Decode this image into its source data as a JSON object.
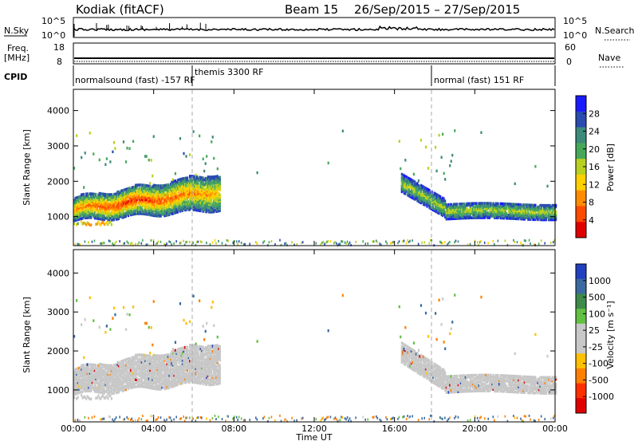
{
  "header": {
    "station": "Kodiak (fitACF)",
    "beam": "Beam 15",
    "dates": "26/Sep/2015 – 27/Sep/2015"
  },
  "nsky": {
    "left_label": "N.Sky",
    "right_label": "N.Search",
    "left_ticks": [
      "10^5",
      "10^0"
    ],
    "right_ticks": [
      "10^5",
      "10^0"
    ]
  },
  "freq": {
    "left_label_1": "Freq.",
    "left_label_2": "[MHz]",
    "right_label": "Nave",
    "left_ticks": [
      "18",
      "8"
    ],
    "right_ticks": [
      "60",
      "0"
    ]
  },
  "cpid": {
    "label": "CPID",
    "segments": [
      {
        "text": "normalsound (fast) -157 RF",
        "start_hour": 0
      },
      {
        "text": "themis 3300 RF",
        "start_hour": 6
      },
      {
        "text": "normal (fast) 151 RF",
        "start_hour": 18
      }
    ]
  },
  "xaxis": {
    "label": "Time UT",
    "ticks": [
      "00:00",
      "04:00",
      "08:00",
      "12:00",
      "16:00",
      "20:00",
      "00:00"
    ],
    "range_hours": [
      0,
      24
    ]
  },
  "power_panel": {
    "ylabel": "Slant Range [km]",
    "yticks": [
      "1000",
      "2000",
      "3000",
      "4000"
    ],
    "colorbar_label": "Power [dB]",
    "colorbar_ticks": [
      "4",
      "8",
      "12",
      "16",
      "20",
      "24",
      "28"
    ],
    "colorbar_colors": [
      "#1a1aff",
      "#2a4cb0",
      "#3e8a7a",
      "#48a85a",
      "#b8d020",
      "#ffd000",
      "#ff8c00",
      "#ff4a00",
      "#e00000"
    ]
  },
  "velocity_panel": {
    "ylabel": "Slant Range [km]",
    "yticks": [
      "1000",
      "2000",
      "3000",
      "4000"
    ],
    "colorbar_label": "Velocity [m s⁻¹]",
    "colorbar_ticks": [
      "1000",
      "500",
      "100",
      "25",
      "-25",
      "-100",
      "-500",
      "-1000"
    ],
    "colorbar_colors": [
      "#2040c0",
      "#3a6aa0",
      "#3d8a4a",
      "#62c042",
      "#c8c8c8",
      "#c8c8c8",
      "#ffc000",
      "#ff8000",
      "#ff3000",
      "#e00000"
    ]
  },
  "chart_data": {
    "type": "heatmap",
    "title": "Kodiak (fitACF) Beam 15 26/Sep/2015 – 27/Sep/2015",
    "xlabel": "Time UT",
    "ylabel": "Slant Range [km]",
    "x_range_hours": [
      0,
      24
    ],
    "y_range_km": [
      180,
      4600
    ],
    "mode_change_hours": [
      6,
      18
    ],
    "nsky_baseline": "~10^3",
    "power_regions": [
      {
        "t0": 0,
        "t1": 7.3,
        "r_center": 1300,
        "r_width": 500,
        "peak_db": 26
      },
      {
        "t0": 16.3,
        "t1": 24,
        "r_center": 1200,
        "r_width": 400,
        "peak_db": 16
      }
    ],
    "velocity_regions": [
      {
        "t0": 0,
        "t1": 7.3,
        "r_center": 1300,
        "r_width": 500,
        "velocity": 0
      },
      {
        "t0": 16.3,
        "t1": 24,
        "r_center": 1200,
        "r_width": 400,
        "velocity": 0
      }
    ]
  }
}
